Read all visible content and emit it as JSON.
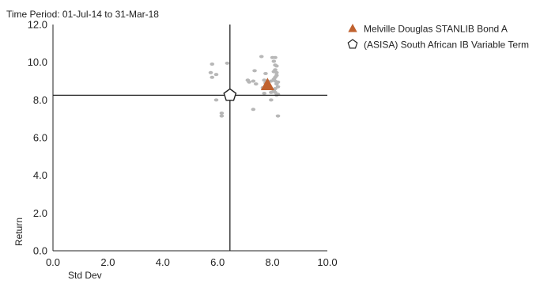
{
  "chart_data": {
    "type": "scatter",
    "subtitle": "Time Period: 01-Jul-14 to 31-Mar-18",
    "xlabel": "Std Dev",
    "ylabel": "Return",
    "xlim": [
      0,
      10
    ],
    "ylim": [
      0,
      12
    ],
    "x_ticks": [
      "0.0",
      "2.0",
      "4.0",
      "6.0",
      "8.0",
      "10.0"
    ],
    "y_ticks": [
      "0.0",
      "2.0",
      "4.0",
      "6.0",
      "8.0",
      "10.0",
      "12.0"
    ],
    "grid": false,
    "legend_position": "top-right",
    "crosshair": {
      "x": 6.45,
      "y": 8.25
    },
    "peers": [
      [
        5.8,
        9.9
      ],
      [
        5.75,
        9.45
      ],
      [
        5.8,
        9.2
      ],
      [
        5.95,
        9.35
      ],
      [
        5.95,
        8.0
      ],
      [
        6.35,
        9.95
      ],
      [
        6.15,
        7.3
      ],
      [
        6.15,
        7.15
      ],
      [
        7.1,
        9.05
      ],
      [
        7.15,
        8.95
      ],
      [
        7.35,
        9.55
      ],
      [
        7.3,
        9.0
      ],
      [
        7.4,
        8.85
      ],
      [
        7.3,
        7.5
      ],
      [
        7.6,
        10.3
      ],
      [
        7.75,
        9.4
      ],
      [
        7.7,
        9.05
      ],
      [
        7.75,
        8.9
      ],
      [
        7.8,
        8.75
      ],
      [
        7.85,
        8.6
      ],
      [
        7.65,
        8.65
      ],
      [
        7.7,
        8.35
      ],
      [
        7.95,
        8.4
      ],
      [
        8.0,
        10.25
      ],
      [
        8.1,
        10.25
      ],
      [
        8.05,
        10.05
      ],
      [
        8.1,
        9.85
      ],
      [
        8.15,
        9.8
      ],
      [
        8.1,
        9.6
      ],
      [
        8.15,
        9.45
      ],
      [
        8.15,
        9.3
      ],
      [
        8.1,
        9.2
      ],
      [
        8.05,
        9.1
      ],
      [
        8.1,
        9.0
      ],
      [
        8.2,
        8.95
      ],
      [
        8.15,
        8.85
      ],
      [
        8.2,
        8.7
      ],
      [
        8.1,
        8.6
      ],
      [
        8.05,
        8.5
      ],
      [
        8.1,
        8.4
      ],
      [
        8.2,
        8.3
      ],
      [
        8.15,
        8.25
      ],
      [
        7.95,
        8.0
      ],
      [
        8.2,
        7.15
      ],
      [
        8.05,
        9.5
      ],
      [
        7.95,
        9.0
      ]
    ],
    "series": [
      {
        "name": "Melville Douglas STANLIB Bond A",
        "marker": "triangle",
        "color": "#c0622f",
        "x": 7.82,
        "y": 8.8
      },
      {
        "name": "(ASISA) South African IB Variable Term",
        "marker": "pentagon",
        "color": "#ffffff",
        "stroke": "#222222",
        "x": 6.45,
        "y": 8.25
      }
    ],
    "peer_color": "#b7b7b7"
  }
}
